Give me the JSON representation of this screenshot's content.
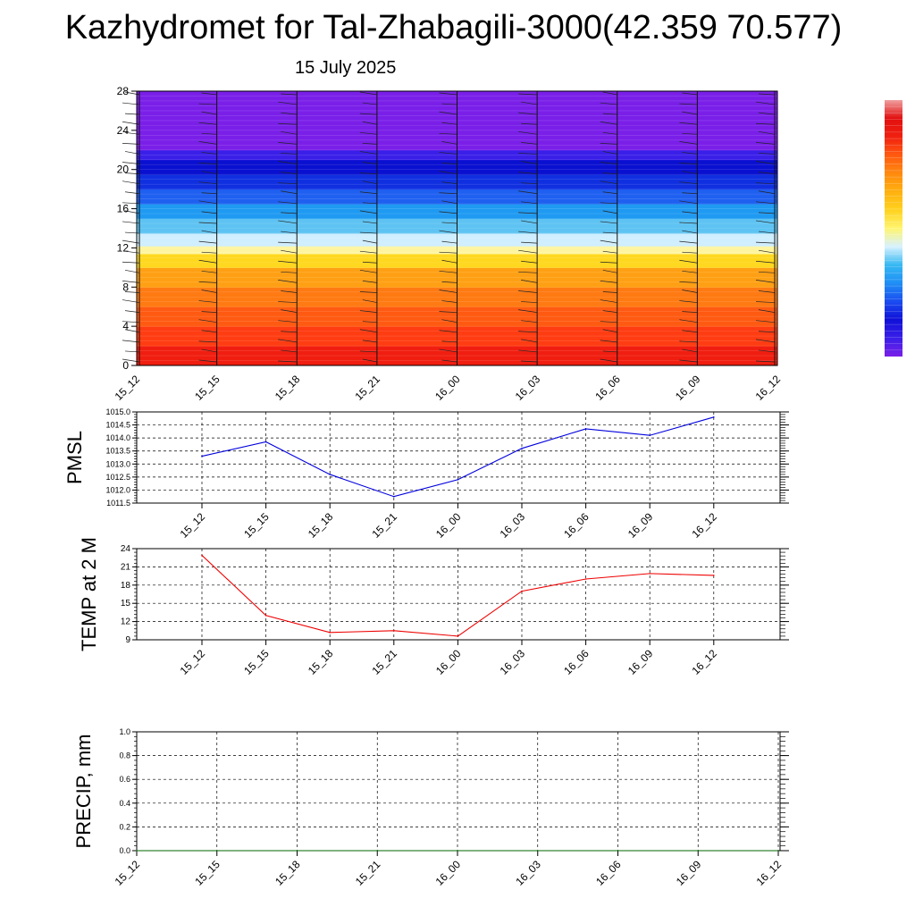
{
  "header": {
    "title": "Kazhydromet for Tal-Zhabagili-3000(42.359 70.577)",
    "date": "15 July 2025"
  },
  "colors": {
    "pmsl_line": "#0000dd",
    "temp_line": "#ee0000",
    "precip_line": "#006400",
    "colorbar": [
      "#7a1fe8",
      "#3a1fe8",
      "#1010d8",
      "#1a4cf0",
      "#1f8ef5",
      "#36b8f2",
      "#d8f2ff",
      "#fff570",
      "#ffd21f",
      "#ffb00f",
      "#ff8a0f",
      "#ff5a10",
      "#f02010",
      "#e21010",
      "#f0a0a0"
    ]
  },
  "chart_data": [
    {
      "type": "heatmap",
      "name": "height-time-section",
      "title": "",
      "xlabel": "",
      "ylabel": "",
      "x_tick_labels": [
        "15_12",
        "15_15",
        "15_18",
        "15_21",
        "16_00",
        "16_03",
        "16_06",
        "16_09",
        "16_12"
      ],
      "y_ticks": [
        0,
        4,
        8,
        12,
        16,
        20,
        24,
        28
      ],
      "ylim": [
        0,
        28
      ],
      "color_bands": [
        {
          "from": 0,
          "to": 2,
          "color": "#f01e10"
        },
        {
          "from": 2,
          "to": 4,
          "color": "#ff3c12"
        },
        {
          "from": 4,
          "to": 6,
          "color": "#ff5a12"
        },
        {
          "from": 6,
          "to": 8,
          "color": "#ff7a12"
        },
        {
          "from": 8,
          "to": 10,
          "color": "#ffa014"
        },
        {
          "from": 10,
          "to": 11.4,
          "color": "#ffd81f"
        },
        {
          "from": 11.4,
          "to": 12.2,
          "color": "#fff5a0"
        },
        {
          "from": 12.2,
          "to": 13.5,
          "color": "#cfeeff"
        },
        {
          "from": 13.5,
          "to": 15,
          "color": "#5ec3f2"
        },
        {
          "from": 15,
          "to": 16.5,
          "color": "#1f9af2"
        },
        {
          "from": 16.5,
          "to": 18,
          "color": "#1f60f0"
        },
        {
          "from": 18,
          "to": 19.5,
          "color": "#1030e0"
        },
        {
          "from": 19.5,
          "to": 21,
          "color": "#0a10d0"
        },
        {
          "from": 21,
          "to": 22,
          "color": "#3a1fe8"
        },
        {
          "from": 22,
          "to": 28,
          "color": "#7a1fe8"
        }
      ],
      "wind_barb_columns": 9,
      "wind_barb_levels": 28
    },
    {
      "type": "line",
      "name": "pmsl",
      "title": "",
      "ylabel": "PMSL",
      "xlabel": "",
      "x": [
        "15_12",
        "15_15",
        "15_18",
        "15_21",
        "16_00",
        "16_03",
        "16_06",
        "16_09",
        "16_12"
      ],
      "series": [
        {
          "values": [
            1013.3,
            1013.85,
            1012.6,
            1011.75,
            1012.4,
            1013.6,
            1014.35,
            1014.1,
            1014.8
          ]
        }
      ],
      "y_ticks": [
        "1011.5",
        "1012.0",
        "1012.5",
        "1013.0",
        "1013.5",
        "1014.0",
        "1014.5",
        "1015.0"
      ],
      "ylim": [
        1011.5,
        1015.0
      ],
      "grid": true
    },
    {
      "type": "line",
      "name": "temp",
      "title": "",
      "ylabel": "TEMP at 2 M",
      "xlabel": "",
      "x": [
        "15_12",
        "15_15",
        "15_18",
        "15_21",
        "16_00",
        "16_03",
        "16_06",
        "16_09",
        "16_12"
      ],
      "series": [
        {
          "values": [
            22.9,
            13.0,
            10.2,
            10.5,
            9.6,
            17.0,
            19.0,
            19.9,
            19.6
          ]
        }
      ],
      "y_ticks": [
        "9",
        "12",
        "15",
        "18",
        "21",
        "24"
      ],
      "ylim": [
        9,
        24
      ],
      "grid": true
    },
    {
      "type": "line",
      "name": "precip",
      "title": "",
      "ylabel": "PRECIP, mm",
      "xlabel": "",
      "x": [
        "15_12",
        "15_15",
        "15_18",
        "15_21",
        "16_00",
        "16_03",
        "16_06",
        "16_09",
        "16_12"
      ],
      "series": [
        {
          "values": [
            0,
            0,
            0,
            0,
            0,
            0,
            0,
            0,
            0
          ]
        }
      ],
      "y_ticks": [
        "0.0",
        "0.2",
        "0.4",
        "0.6",
        "0.8",
        "1.0"
      ],
      "ylim": [
        0,
        1.0
      ],
      "grid": true
    }
  ]
}
